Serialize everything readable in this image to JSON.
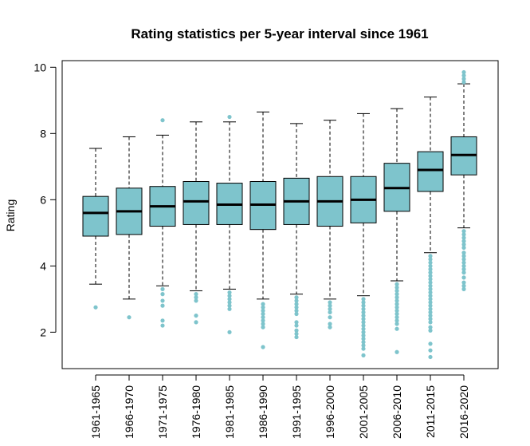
{
  "chart_data": {
    "type": "box",
    "title": "Rating statistics per 5-year interval since 1961",
    "xlabel": "",
    "ylabel": "Rating",
    "ylim": [
      0.9,
      10.2
    ],
    "yticks": [
      2,
      4,
      6,
      8,
      10
    ],
    "grid": false,
    "colors": {
      "box_fill": "#7ec4cc",
      "outlier": "#7ec4cc",
      "median": "#000000",
      "frame": "#000000"
    },
    "categories": [
      "1961-1965",
      "1966-1970",
      "1971-1975",
      "1976-1980",
      "1981-1985",
      "1986-1990",
      "1991-1995",
      "1996-2000",
      "2001-2005",
      "2006-2010",
      "2011-2015",
      "2016-2020"
    ],
    "boxes": [
      {
        "whisker_low": 3.45,
        "q1": 4.9,
        "median": 5.6,
        "q3": 6.1,
        "whisker_high": 7.55,
        "outliers": [
          2.75
        ]
      },
      {
        "whisker_low": 3.0,
        "q1": 4.95,
        "median": 5.65,
        "q3": 6.35,
        "whisker_high": 7.9,
        "outliers": [
          2.45
        ]
      },
      {
        "whisker_low": 3.4,
        "q1": 5.2,
        "median": 5.8,
        "q3": 6.4,
        "whisker_high": 7.95,
        "outliers": [
          8.4,
          3.3,
          3.15,
          2.95,
          2.8,
          2.35,
          2.2
        ]
      },
      {
        "whisker_low": 3.25,
        "q1": 5.25,
        "median": 5.95,
        "q3": 6.55,
        "whisker_high": 8.35,
        "outliers": [
          3.15,
          3.05,
          2.95,
          2.5,
          2.3
        ]
      },
      {
        "whisker_low": 3.3,
        "q1": 5.25,
        "median": 5.85,
        "q3": 6.5,
        "whisker_high": 8.35,
        "outliers": [
          8.5,
          3.2,
          3.1,
          3.0,
          2.9,
          2.8,
          2.7,
          2.0
        ]
      },
      {
        "whisker_low": 3.0,
        "q1": 5.1,
        "median": 5.85,
        "q3": 6.55,
        "whisker_high": 8.65,
        "outliers": [
          2.85,
          2.75,
          2.65,
          2.55,
          2.45,
          2.35,
          2.25,
          2.15,
          1.55
        ]
      },
      {
        "whisker_low": 3.15,
        "q1": 5.25,
        "median": 5.95,
        "q3": 6.65,
        "whisker_high": 8.3,
        "outliers": [
          3.05,
          2.95,
          2.85,
          2.75,
          2.65,
          2.55,
          2.3,
          2.2,
          2.05,
          1.95,
          1.85
        ]
      },
      {
        "whisker_low": 3.0,
        "q1": 5.2,
        "median": 5.95,
        "q3": 6.7,
        "whisker_high": 8.4,
        "outliers": [
          2.9,
          2.8,
          2.7,
          2.6,
          2.45,
          2.25,
          2.15
        ]
      },
      {
        "whisker_low": 3.1,
        "q1": 5.3,
        "median": 6.0,
        "q3": 6.7,
        "whisker_high": 8.6,
        "outliers": [
          3.0,
          2.9,
          2.8,
          2.7,
          2.6,
          2.5,
          2.4,
          2.3,
          2.2,
          2.1,
          2.0,
          1.9,
          1.8,
          1.7,
          1.6,
          1.5,
          1.3
        ]
      },
      {
        "whisker_low": 3.55,
        "q1": 5.65,
        "median": 6.35,
        "q3": 7.1,
        "whisker_high": 8.75,
        "outliers": [
          3.45,
          3.35,
          3.25,
          3.15,
          3.05,
          2.95,
          2.85,
          2.75,
          2.65,
          2.55,
          2.45,
          2.35,
          2.25,
          2.1,
          1.4
        ]
      },
      {
        "whisker_low": 4.4,
        "q1": 6.25,
        "median": 6.9,
        "q3": 7.45,
        "whisker_high": 9.1,
        "outliers": [
          4.3,
          4.2,
          4.1,
          4.0,
          3.9,
          3.8,
          3.7,
          3.6,
          3.5,
          3.4,
          3.3,
          3.2,
          3.1,
          3.0,
          2.9,
          2.8,
          2.7,
          2.6,
          2.5,
          2.4,
          2.3,
          2.15,
          2.05,
          1.65,
          1.45,
          1.25
        ]
      },
      {
        "whisker_low": 5.15,
        "q1": 6.75,
        "median": 7.35,
        "q3": 7.9,
        "whisker_high": 9.5,
        "outliers": [
          9.85,
          9.75,
          9.65,
          9.55,
          5.05,
          4.95,
          4.85,
          4.75,
          4.65,
          4.55,
          4.4,
          4.3,
          4.2,
          4.1,
          4.0,
          3.9,
          3.8,
          3.65,
          3.5,
          3.4,
          3.3
        ]
      }
    ]
  }
}
